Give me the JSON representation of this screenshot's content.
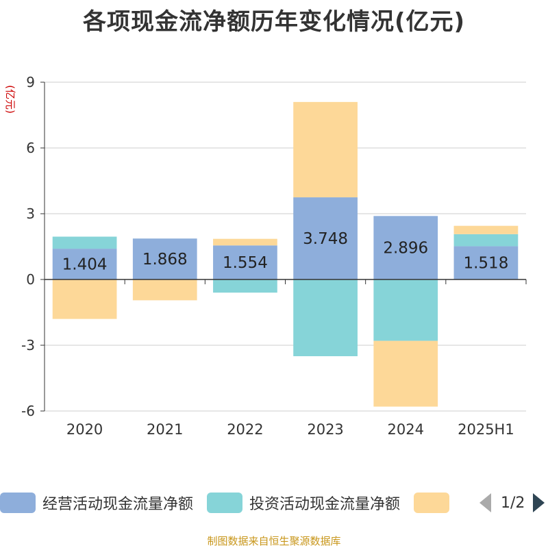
{
  "chart_data": {
    "type": "bar",
    "stacked": true,
    "title": "各项现金流净额历年变化情况(亿元)",
    "ylabel": "(亿元)",
    "categories": [
      "2020",
      "2021",
      "2022",
      "2023",
      "2024",
      "2025H1"
    ],
    "ylim": [
      -6,
      9
    ],
    "yticks": [
      -6,
      -3,
      0,
      3,
      6,
      9
    ],
    "grid": true,
    "series": [
      {
        "name": "经营活动现金流量净额",
        "color": "#8eaedb",
        "values": [
          1.404,
          1.868,
          1.554,
          3.748,
          2.896,
          1.518
        ],
        "show_labels": true
      },
      {
        "name": "投资活动现金流量净额",
        "color": "#86d4d8",
        "values": [
          0.55,
          0.0,
          -0.6,
          -3.5,
          -2.8,
          0.55
        ],
        "show_labels": false
      },
      {
        "name": "",
        "color": "#fdd898",
        "values": [
          -1.8,
          -0.95,
          0.3,
          4.35,
          -3.0,
          0.38
        ],
        "show_labels": false
      }
    ],
    "legend": {
      "position": "bottom",
      "page": "1/2"
    }
  },
  "source": "制图数据来自恒生聚源数据库"
}
